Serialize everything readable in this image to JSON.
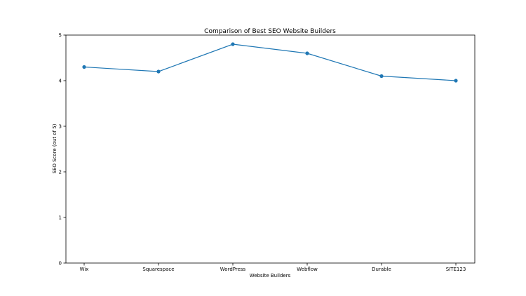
{
  "chart_data": {
    "type": "line",
    "title": "Comparison of Best SEO Website Builders",
    "xlabel": "Website Builders",
    "ylabel": "SEO Score (out of 5)",
    "categories": [
      "Wix",
      "Squarespace",
      "WordPress",
      "Webflow",
      "Durable",
      "SITE123"
    ],
    "series": [
      {
        "values": [
          4.3,
          4.2,
          4.8,
          4.6,
          4.1,
          4.0
        ],
        "color": "#1f77b4",
        "marker": "circle"
      }
    ],
    "ylim": [
      0,
      5
    ],
    "yticks": [
      0,
      1,
      2,
      3,
      4,
      5
    ],
    "grid": false,
    "legend": "none"
  }
}
